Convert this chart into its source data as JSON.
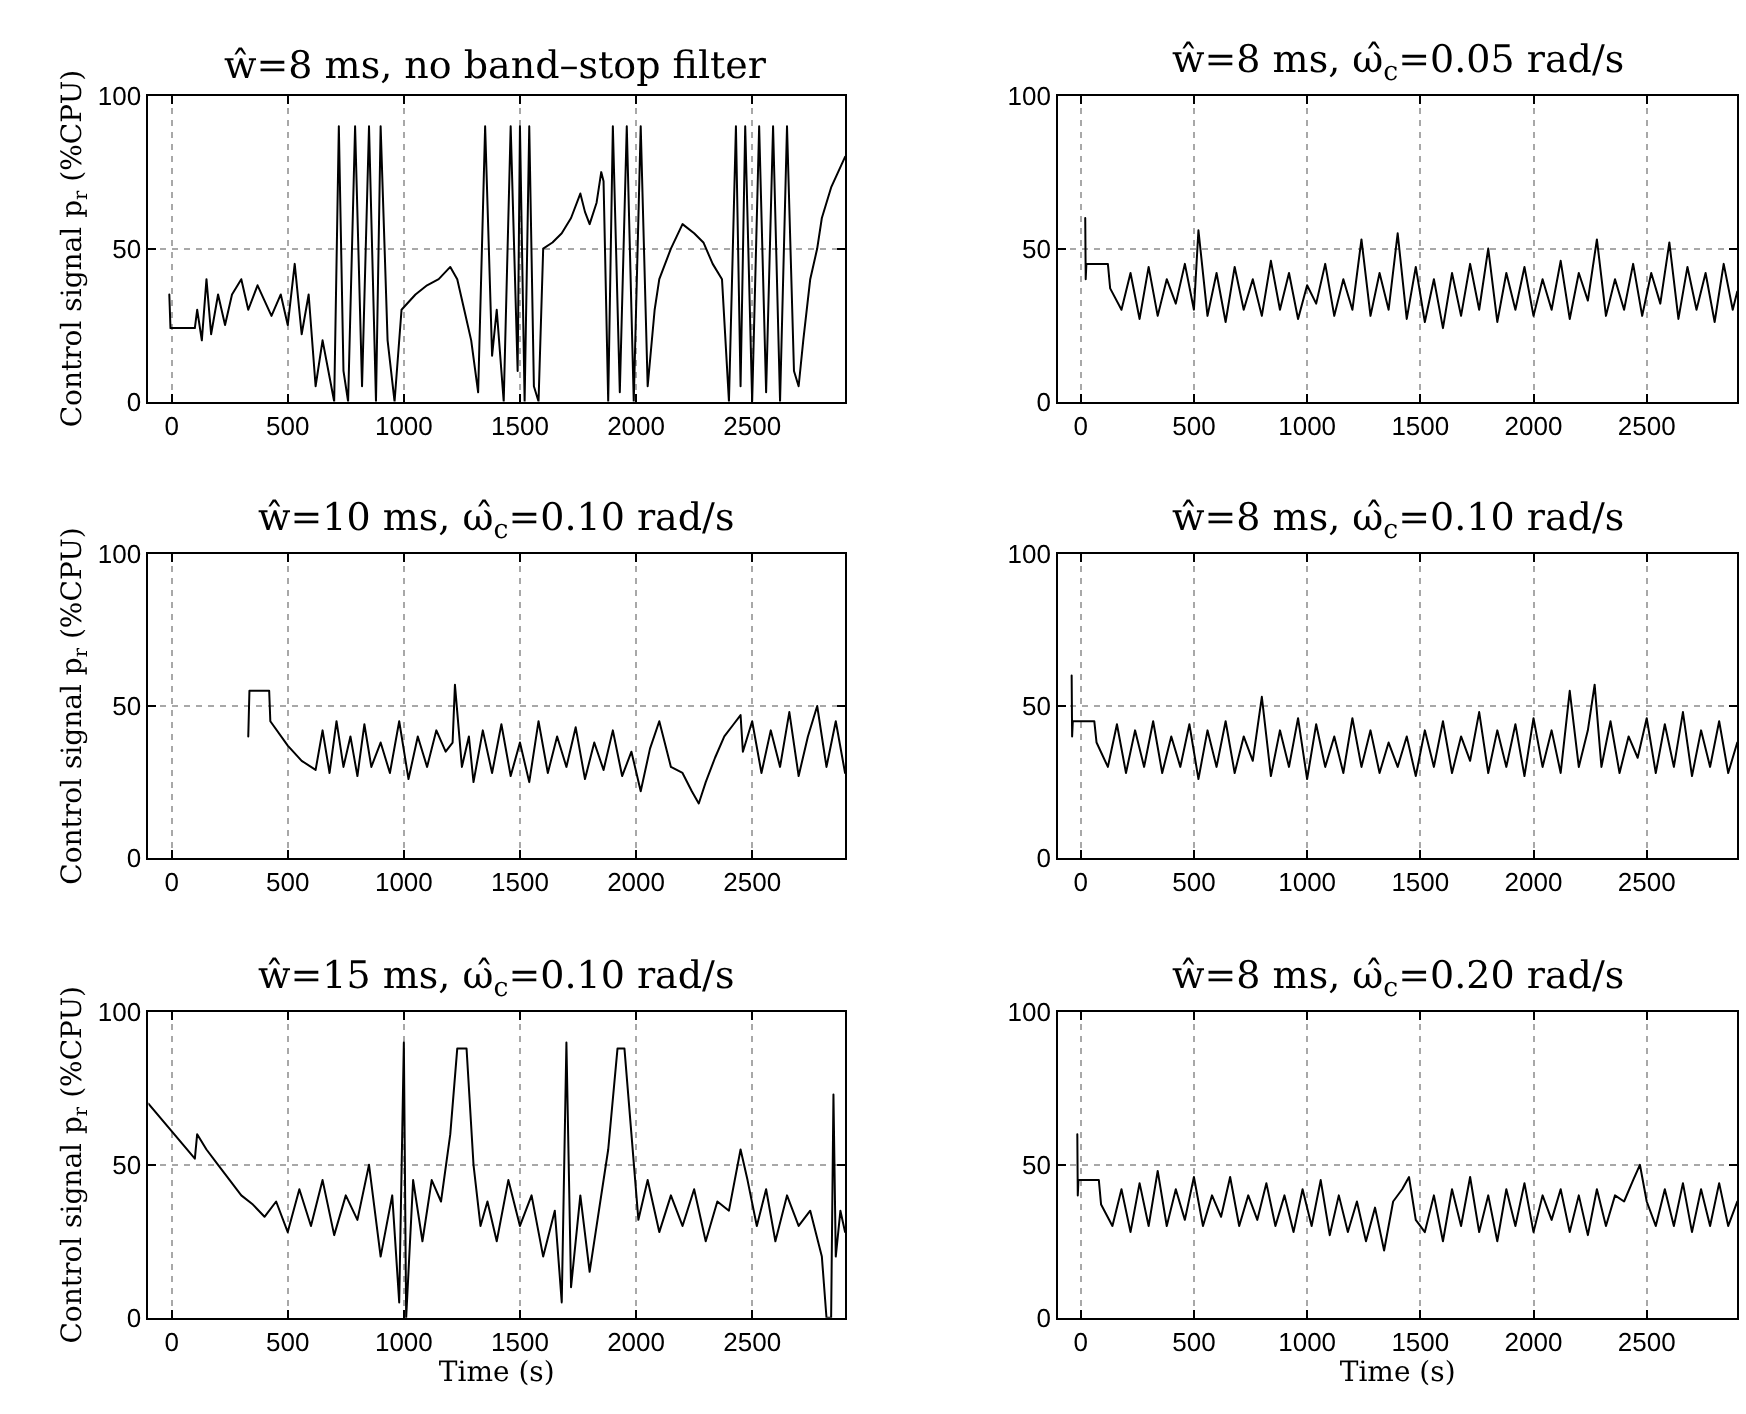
{
  "chart_data": [
    {
      "type": "line",
      "title": "ŵ=8 ms, no band–stop filter",
      "ylabel": "Control signal p$_{r}$ (%CPU)",
      "xlim": [
        -100,
        2900
      ],
      "ylim": [
        0,
        100
      ],
      "xticks": [
        0,
        500,
        1000,
        1500,
        2000,
        2500
      ],
      "yticks": [
        0,
        50,
        100
      ],
      "grid": true,
      "line_style": "solid",
      "series": [
        {
          "color": "#000000",
          "x": [
            -10,
            -5,
            100,
            110,
            130,
            150,
            170,
            200,
            230,
            260,
            300,
            330,
            370,
            400,
            430,
            470,
            500,
            530,
            560,
            590,
            620,
            650,
            700,
            720,
            740,
            760,
            790,
            820,
            850,
            880,
            900,
            930,
            960,
            990,
            1050,
            1100,
            1150,
            1200,
            1230,
            1260,
            1290,
            1320,
            1350,
            1380,
            1400,
            1430,
            1460,
            1490,
            1500,
            1520,
            1540,
            1560,
            1580,
            1600,
            1640,
            1680,
            1720,
            1760,
            1780,
            1800,
            1830,
            1850,
            1860,
            1880,
            1900,
            1930,
            1960,
            1990,
            2020,
            2050,
            2080,
            2100,
            2150,
            2200,
            2250,
            2290,
            2330,
            2370,
            2400,
            2430,
            2450,
            2470,
            2500,
            2530,
            2560,
            2590,
            2620,
            2650,
            2680,
            2700,
            2720,
            2750,
            2780,
            2800,
            2840,
            2900
          ],
          "values": [
            35,
            24,
            24,
            30,
            20,
            40,
            22,
            35,
            25,
            35,
            40,
            30,
            38,
            33,
            28,
            35,
            25,
            45,
            22,
            35,
            5,
            20,
            0,
            90,
            10,
            0,
            90,
            5,
            90,
            0,
            90,
            20,
            0,
            30,
            35,
            38,
            40,
            44,
            40,
            30,
            20,
            3,
            90,
            15,
            30,
            0,
            90,
            10,
            90,
            0,
            90,
            5,
            0,
            50,
            52,
            55,
            60,
            68,
            62,
            58,
            65,
            75,
            72,
            0,
            90,
            3,
            90,
            0,
            90,
            5,
            30,
            40,
            50,
            58,
            55,
            52,
            45,
            40,
            0,
            90,
            5,
            90,
            0,
            90,
            3,
            90,
            0,
            90,
            10,
            5,
            20,
            40,
            50,
            60,
            70,
            80
          ]
        }
      ]
    },
    {
      "type": "line",
      "title": "ŵ=8 ms, ω̂$_{c}$=0.05 rad/s",
      "xlim": [
        -100,
        2900
      ],
      "ylim": [
        0,
        100
      ],
      "xticks": [
        0,
        500,
        1000,
        1500,
        2000,
        2500
      ],
      "yticks": [
        0,
        50,
        100
      ],
      "grid": true,
      "line_style": "solid",
      "series": [
        {
          "color": "#000000",
          "x": [
            20,
            22,
            25,
            120,
            130,
            180,
            220,
            260,
            300,
            340,
            380,
            420,
            460,
            500,
            520,
            560,
            600,
            640,
            680,
            720,
            760,
            800,
            840,
            880,
            920,
            960,
            1000,
            1040,
            1080,
            1120,
            1160,
            1200,
            1240,
            1280,
            1320,
            1360,
            1400,
            1440,
            1480,
            1520,
            1560,
            1600,
            1640,
            1680,
            1720,
            1760,
            1800,
            1840,
            1880,
            1920,
            1960,
            2000,
            2040,
            2080,
            2120,
            2160,
            2200,
            2240,
            2280,
            2320,
            2360,
            2400,
            2440,
            2480,
            2520,
            2560,
            2600,
            2640,
            2680,
            2720,
            2760,
            2800,
            2840,
            2880,
            2900
          ],
          "values": [
            60,
            40,
            45,
            45,
            37,
            30,
            42,
            27,
            44,
            28,
            40,
            32,
            45,
            30,
            56,
            28,
            42,
            26,
            44,
            30,
            40,
            28,
            46,
            30,
            42,
            27,
            38,
            32,
            45,
            28,
            40,
            30,
            53,
            28,
            42,
            30,
            55,
            27,
            44,
            26,
            40,
            24,
            42,
            28,
            45,
            30,
            50,
            26,
            42,
            30,
            44,
            28,
            40,
            30,
            46,
            27,
            42,
            33,
            53,
            28,
            40,
            30,
            45,
            28,
            42,
            32,
            52,
            27,
            44,
            30,
            42,
            26,
            45,
            30,
            36
          ]
        }
      ]
    },
    {
      "type": "line",
      "title": "ŵ=10 ms, ω̂$_{c}$=0.10 rad/s",
      "ylabel": "Control signal p$_{r}$ (%CPU)",
      "xlim": [
        -100,
        2900
      ],
      "ylim": [
        0,
        100
      ],
      "xticks": [
        0,
        500,
        1000,
        1500,
        2000,
        2500
      ],
      "yticks": [
        0,
        50,
        100
      ],
      "grid": true,
      "line_style": "solid",
      "series": [
        {
          "color": "#000000",
          "x": [
            330,
            335,
            420,
            425,
            500,
            560,
            620,
            650,
            680,
            710,
            740,
            770,
            800,
            830,
            860,
            900,
            940,
            980,
            1020,
            1060,
            1100,
            1140,
            1180,
            1210,
            1220,
            1250,
            1280,
            1300,
            1340,
            1380,
            1420,
            1460,
            1500,
            1540,
            1580,
            1620,
            1660,
            1700,
            1740,
            1780,
            1820,
            1860,
            1900,
            1940,
            1980,
            2020,
            2060,
            2100,
            2150,
            2200,
            2240,
            2270,
            2300,
            2340,
            2380,
            2420,
            2450,
            2460,
            2500,
            2540,
            2580,
            2620,
            2660,
            2700,
            2740,
            2780,
            2820,
            2860,
            2900
          ],
          "values": [
            40,
            55,
            55,
            45,
            37,
            32,
            29,
            42,
            28,
            45,
            30,
            40,
            27,
            44,
            30,
            38,
            28,
            45,
            26,
            40,
            30,
            42,
            35,
            38,
            57,
            30,
            40,
            25,
            42,
            28,
            44,
            27,
            38,
            25,
            45,
            28,
            40,
            30,
            43,
            26,
            38,
            29,
            42,
            27,
            35,
            22,
            36,
            45,
            30,
            28,
            22,
            18,
            25,
            33,
            40,
            44,
            47,
            35,
            45,
            28,
            42,
            30,
            48,
            27,
            40,
            50,
            30,
            45,
            28
          ]
        }
      ]
    },
    {
      "type": "line",
      "title": "ŵ=8 ms, ω̂$_{c}$=0.10 rad/s",
      "xlim": [
        -100,
        2900
      ],
      "ylim": [
        0,
        100
      ],
      "xticks": [
        0,
        500,
        1000,
        1500,
        2000,
        2500
      ],
      "yticks": [
        0,
        50,
        100
      ],
      "grid": true,
      "line_style": "solid",
      "series": [
        {
          "color": "#000000",
          "x": [
            -40,
            -38,
            -35,
            60,
            70,
            120,
            160,
            200,
            240,
            280,
            320,
            360,
            400,
            440,
            480,
            520,
            560,
            600,
            640,
            680,
            720,
            760,
            800,
            840,
            880,
            920,
            960,
            1000,
            1040,
            1080,
            1120,
            1160,
            1200,
            1240,
            1280,
            1320,
            1360,
            1400,
            1440,
            1480,
            1520,
            1560,
            1600,
            1640,
            1680,
            1720,
            1760,
            1800,
            1840,
            1880,
            1920,
            1960,
            2000,
            2040,
            2080,
            2120,
            2160,
            2200,
            2240,
            2270,
            2300,
            2340,
            2380,
            2420,
            2460,
            2500,
            2540,
            2580,
            2620,
            2660,
            2700,
            2740,
            2780,
            2820,
            2860,
            2900
          ],
          "values": [
            60,
            40,
            45,
            45,
            38,
            30,
            44,
            28,
            42,
            30,
            45,
            28,
            40,
            30,
            44,
            26,
            42,
            30,
            45,
            28,
            40,
            32,
            53,
            27,
            42,
            30,
            46,
            26,
            44,
            30,
            40,
            28,
            46,
            30,
            42,
            28,
            38,
            30,
            40,
            27,
            42,
            30,
            45,
            28,
            40,
            32,
            48,
            28,
            42,
            30,
            44,
            27,
            46,
            30,
            42,
            28,
            55,
            30,
            42,
            57,
            30,
            45,
            28,
            40,
            33,
            46,
            28,
            44,
            30,
            48,
            27,
            42,
            30,
            45,
            28,
            38
          ]
        }
      ]
    },
    {
      "type": "line",
      "title": "ŵ=15 ms, ω̂$_{c}$=0.10 rad/s",
      "ylabel": "Control signal p$_{r}$ (%CPU)",
      "xlabel": "Time (s)",
      "xlim": [
        -100,
        2900
      ],
      "ylim": [
        0,
        100
      ],
      "xticks": [
        0,
        500,
        1000,
        1500,
        2000,
        2500
      ],
      "yticks": [
        0,
        50,
        100
      ],
      "grid": true,
      "line_style": "solid",
      "series": [
        {
          "color": "#000000",
          "x": [
            -100,
            100,
            110,
            150,
            200,
            250,
            300,
            350,
            400,
            450,
            500,
            550,
            600,
            650,
            700,
            750,
            800,
            850,
            900,
            950,
            980,
            1000,
            1010,
            1040,
            1080,
            1120,
            1160,
            1200,
            1230,
            1270,
            1300,
            1330,
            1360,
            1400,
            1450,
            1500,
            1550,
            1600,
            1650,
            1680,
            1700,
            1720,
            1760,
            1800,
            1840,
            1880,
            1920,
            1950,
            1980,
            2010,
            2050,
            2100,
            2150,
            2200,
            2250,
            2300,
            2350,
            2400,
            2450,
            2480,
            2520,
            2560,
            2600,
            2650,
            2700,
            2750,
            2800,
            2820,
            2840,
            2850,
            2860,
            2880,
            2900
          ],
          "values": [
            70,
            52,
            60,
            55,
            50,
            45,
            40,
            37,
            33,
            38,
            28,
            42,
            30,
            45,
            27,
            40,
            32,
            50,
            20,
            40,
            5,
            90,
            0,
            45,
            25,
            45,
            38,
            60,
            88,
            88,
            50,
            30,
            38,
            25,
            45,
            30,
            40,
            20,
            35,
            5,
            90,
            10,
            40,
            15,
            35,
            55,
            88,
            88,
            60,
            32,
            45,
            28,
            40,
            30,
            42,
            25,
            38,
            35,
            55,
            45,
            30,
            42,
            25,
            40,
            30,
            35,
            20,
            0,
            0,
            73,
            20,
            35,
            28
          ]
        }
      ]
    },
    {
      "type": "line",
      "title": "ŵ=8 ms, ω̂$_{c}$=0.20 rad/s",
      "xlabel": "Time (s)",
      "xlim": [
        -100,
        2900
      ],
      "ylim": [
        0,
        100
      ],
      "xticks": [
        0,
        500,
        1000,
        1500,
        2000,
        2500
      ],
      "yticks": [
        0,
        50,
        100
      ],
      "grid": true,
      "line_style": "solid",
      "series": [
        {
          "color": "#000000",
          "x": [
            -15,
            -13,
            -10,
            80,
            90,
            140,
            180,
            220,
            260,
            300,
            340,
            380,
            420,
            460,
            500,
            540,
            580,
            620,
            660,
            700,
            740,
            780,
            820,
            860,
            900,
            940,
            980,
            1020,
            1060,
            1100,
            1140,
            1180,
            1220,
            1260,
            1300,
            1340,
            1380,
            1420,
            1450,
            1480,
            1520,
            1560,
            1600,
            1640,
            1680,
            1720,
            1760,
            1800,
            1840,
            1880,
            1920,
            1960,
            2000,
            2040,
            2080,
            2120,
            2160,
            2200,
            2240,
            2280,
            2320,
            2360,
            2400,
            2440,
            2470,
            2500,
            2540,
            2580,
            2620,
            2660,
            2700,
            2740,
            2780,
            2820,
            2860,
            2900
          ],
          "values": [
            60,
            40,
            45,
            45,
            37,
            30,
            42,
            28,
            44,
            30,
            48,
            30,
            42,
            32,
            46,
            30,
            40,
            33,
            46,
            30,
            40,
            32,
            44,
            30,
            40,
            28,
            42,
            30,
            45,
            27,
            40,
            28,
            38,
            25,
            36,
            22,
            38,
            42,
            46,
            32,
            28,
            40,
            25,
            42,
            30,
            46,
            28,
            40,
            25,
            42,
            30,
            44,
            28,
            40,
            32,
            42,
            28,
            40,
            27,
            42,
            30,
            40,
            38,
            45,
            50,
            38,
            30,
            42,
            30,
            44,
            28,
            42,
            30,
            44,
            30,
            38
          ]
        }
      ]
    }
  ]
}
